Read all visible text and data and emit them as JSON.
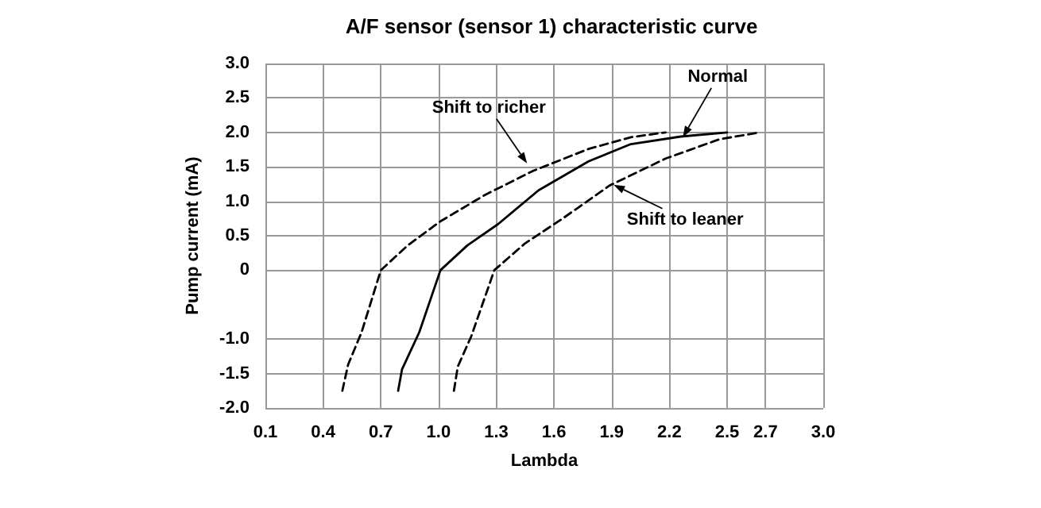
{
  "chart_data": {
    "type": "line",
    "title": "A/F sensor (sensor 1) characteristic curve",
    "xlabel": "Lambda",
    "ylabel": "Pump current (mA)",
    "xlim": [
      0.1,
      3.0
    ],
    "xticks": [
      0.1,
      0.4,
      0.7,
      {
        "value": 1,
        "label": "1.0"
      },
      1.3,
      1.6,
      1.9,
      2.2,
      2.5,
      2.7,
      {
        "value": 3,
        "label": "3.0"
      }
    ],
    "ylim": [
      -2.0,
      3.0
    ],
    "yticks": [
      {
        "value": -2,
        "label": "-2.0"
      },
      -1.5,
      {
        "value": -1,
        "label": "-1.0"
      },
      0,
      0.5,
      {
        "value": 1,
        "label": "1.0"
      },
      1.5,
      {
        "value": 2,
        "label": "2.0"
      },
      2.5,
      {
        "value": 3,
        "label": "3.0"
      }
    ],
    "grid": true,
    "marker": "none",
    "series": [
      {
        "color": "#000000",
        "line_style": "dashed",
        "x": [
          0.5,
          0.53,
          0.6,
          0.7,
          0.84,
          1.01,
          1.24,
          1.49,
          1.78,
          2.0,
          2.18
        ],
        "values": [
          -1.75,
          -1.37,
          -0.9,
          0,
          0.36,
          0.71,
          1.09,
          1.44,
          1.76,
          1.93,
          2.0
        ]
      },
      {
        "color": "#000000",
        "line_style": "solid",
        "x": [
          0.79,
          0.81,
          0.9,
          1.01,
          1.15,
          1.31,
          1.52,
          1.78,
          2.0,
          2.26,
          2.5
        ],
        "values": [
          -1.75,
          -1.44,
          -0.9,
          0,
          0.36,
          0.67,
          1.16,
          1.58,
          1.83,
          1.94,
          2.0
        ]
      },
      {
        "color": "#000000",
        "line_style": "dashed",
        "x": [
          1.08,
          1.1,
          1.17,
          1.29,
          1.45,
          1.64,
          1.89,
          2.18,
          2.46,
          2.67
        ],
        "values": [
          -1.75,
          -1.4,
          -0.96,
          0,
          0.39,
          0.74,
          1.23,
          1.62,
          1.9,
          2.0
        ]
      }
    ],
    "annotations": [
      {
        "text": "Normal",
        "x": 2.27,
        "y": 1.93
      },
      {
        "text": "Shift to richer",
        "x": 1.46,
        "y": 1.55
      },
      {
        "text": "Shift to leaner",
        "x": 1.91,
        "y": 1.24
      }
    ]
  }
}
